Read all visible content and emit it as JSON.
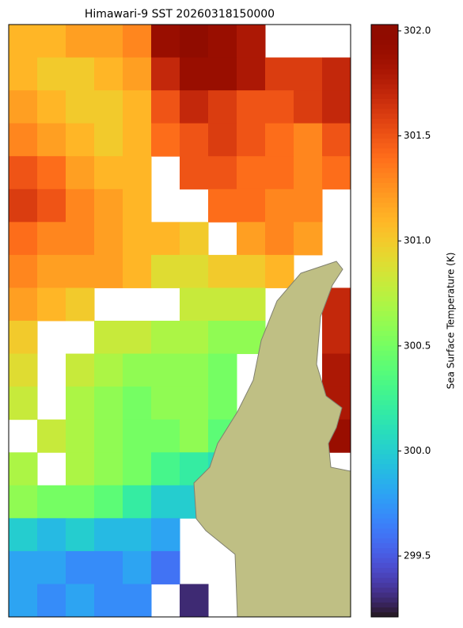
{
  "chart_data": {
    "type": "heatmap",
    "title": "Himawari-9 SST 20260318150000",
    "colorbar_label": "Sea Surface Temperature (K)",
    "cmap": "turbo",
    "clim": [
      299.21,
      302.03
    ],
    "cticks": [
      299.5,
      {
        "value": 300,
        "label": "300.0"
      },
      300.5,
      {
        "value": 301,
        "label": "301.0"
      },
      301.5,
      {
        "value": 302,
        "label": "302.0"
      }
    ],
    "values": [
      [
        301.1,
        301.1,
        301.2,
        301.2,
        301.3,
        301.9,
        302.0,
        301.9,
        301.8,
        null,
        null,
        null
      ],
      [
        301.1,
        301.0,
        301.0,
        301.1,
        301.2,
        301.7,
        301.9,
        301.9,
        301.8,
        301.6,
        301.6,
        301.7
      ],
      [
        301.2,
        301.1,
        301.0,
        301.0,
        301.1,
        301.5,
        301.7,
        301.6,
        301.5,
        301.5,
        301.6,
        301.7
      ],
      [
        301.3,
        301.2,
        301.1,
        301.0,
        301.1,
        301.4,
        301.5,
        301.6,
        301.5,
        301.4,
        301.3,
        301.5
      ],
      [
        301.5,
        301.4,
        301.2,
        301.1,
        301.1,
        null,
        301.5,
        301.5,
        301.4,
        301.4,
        301.3,
        301.4
      ],
      [
        301.6,
        301.5,
        301.3,
        301.2,
        301.1,
        null,
        null,
        301.4,
        301.4,
        301.3,
        301.3,
        null
      ],
      [
        301.4,
        301.3,
        301.3,
        301.2,
        301.1,
        301.1,
        301.0,
        null,
        301.2,
        301.3,
        301.2,
        null
      ],
      [
        301.3,
        301.2,
        301.2,
        301.2,
        301.1,
        300.9,
        300.9,
        301.0,
        301.0,
        301.1,
        null,
        null
      ],
      [
        301.2,
        301.1,
        301.0,
        null,
        null,
        null,
        300.8,
        300.8,
        300.8,
        null,
        null,
        301.7
      ],
      [
        301.0,
        null,
        null,
        300.8,
        300.8,
        300.7,
        300.7,
        300.6,
        300.6,
        null,
        null,
        301.7
      ],
      [
        300.9,
        null,
        300.8,
        300.7,
        300.6,
        300.6,
        300.6,
        300.5,
        null,
        null,
        null,
        301.8
      ],
      [
        300.8,
        null,
        300.7,
        300.6,
        300.5,
        300.6,
        300.6,
        300.5,
        null,
        null,
        null,
        301.8
      ],
      [
        null,
        300.8,
        300.7,
        300.6,
        300.5,
        300.5,
        300.6,
        300.4,
        null,
        null,
        null,
        301.9
      ],
      [
        300.7,
        null,
        300.7,
        300.6,
        300.5,
        300.3,
        300.2,
        300.1,
        null,
        null,
        null,
        null
      ],
      [
        300.6,
        300.5,
        300.5,
        300.4,
        300.2,
        300.0,
        300.0,
        null,
        null,
        null,
        null,
        null
      ],
      [
        300.0,
        299.9,
        300.0,
        299.9,
        299.9,
        299.8,
        null,
        null,
        null,
        null,
        null,
        null
      ],
      [
        299.8,
        299.8,
        299.7,
        299.7,
        299.8,
        299.6,
        null,
        null,
        null,
        null,
        null,
        null
      ],
      [
        299.8,
        299.7,
        299.8,
        299.7,
        299.7,
        null,
        299.3,
        null,
        null,
        null,
        null,
        null
      ]
    ]
  }
}
